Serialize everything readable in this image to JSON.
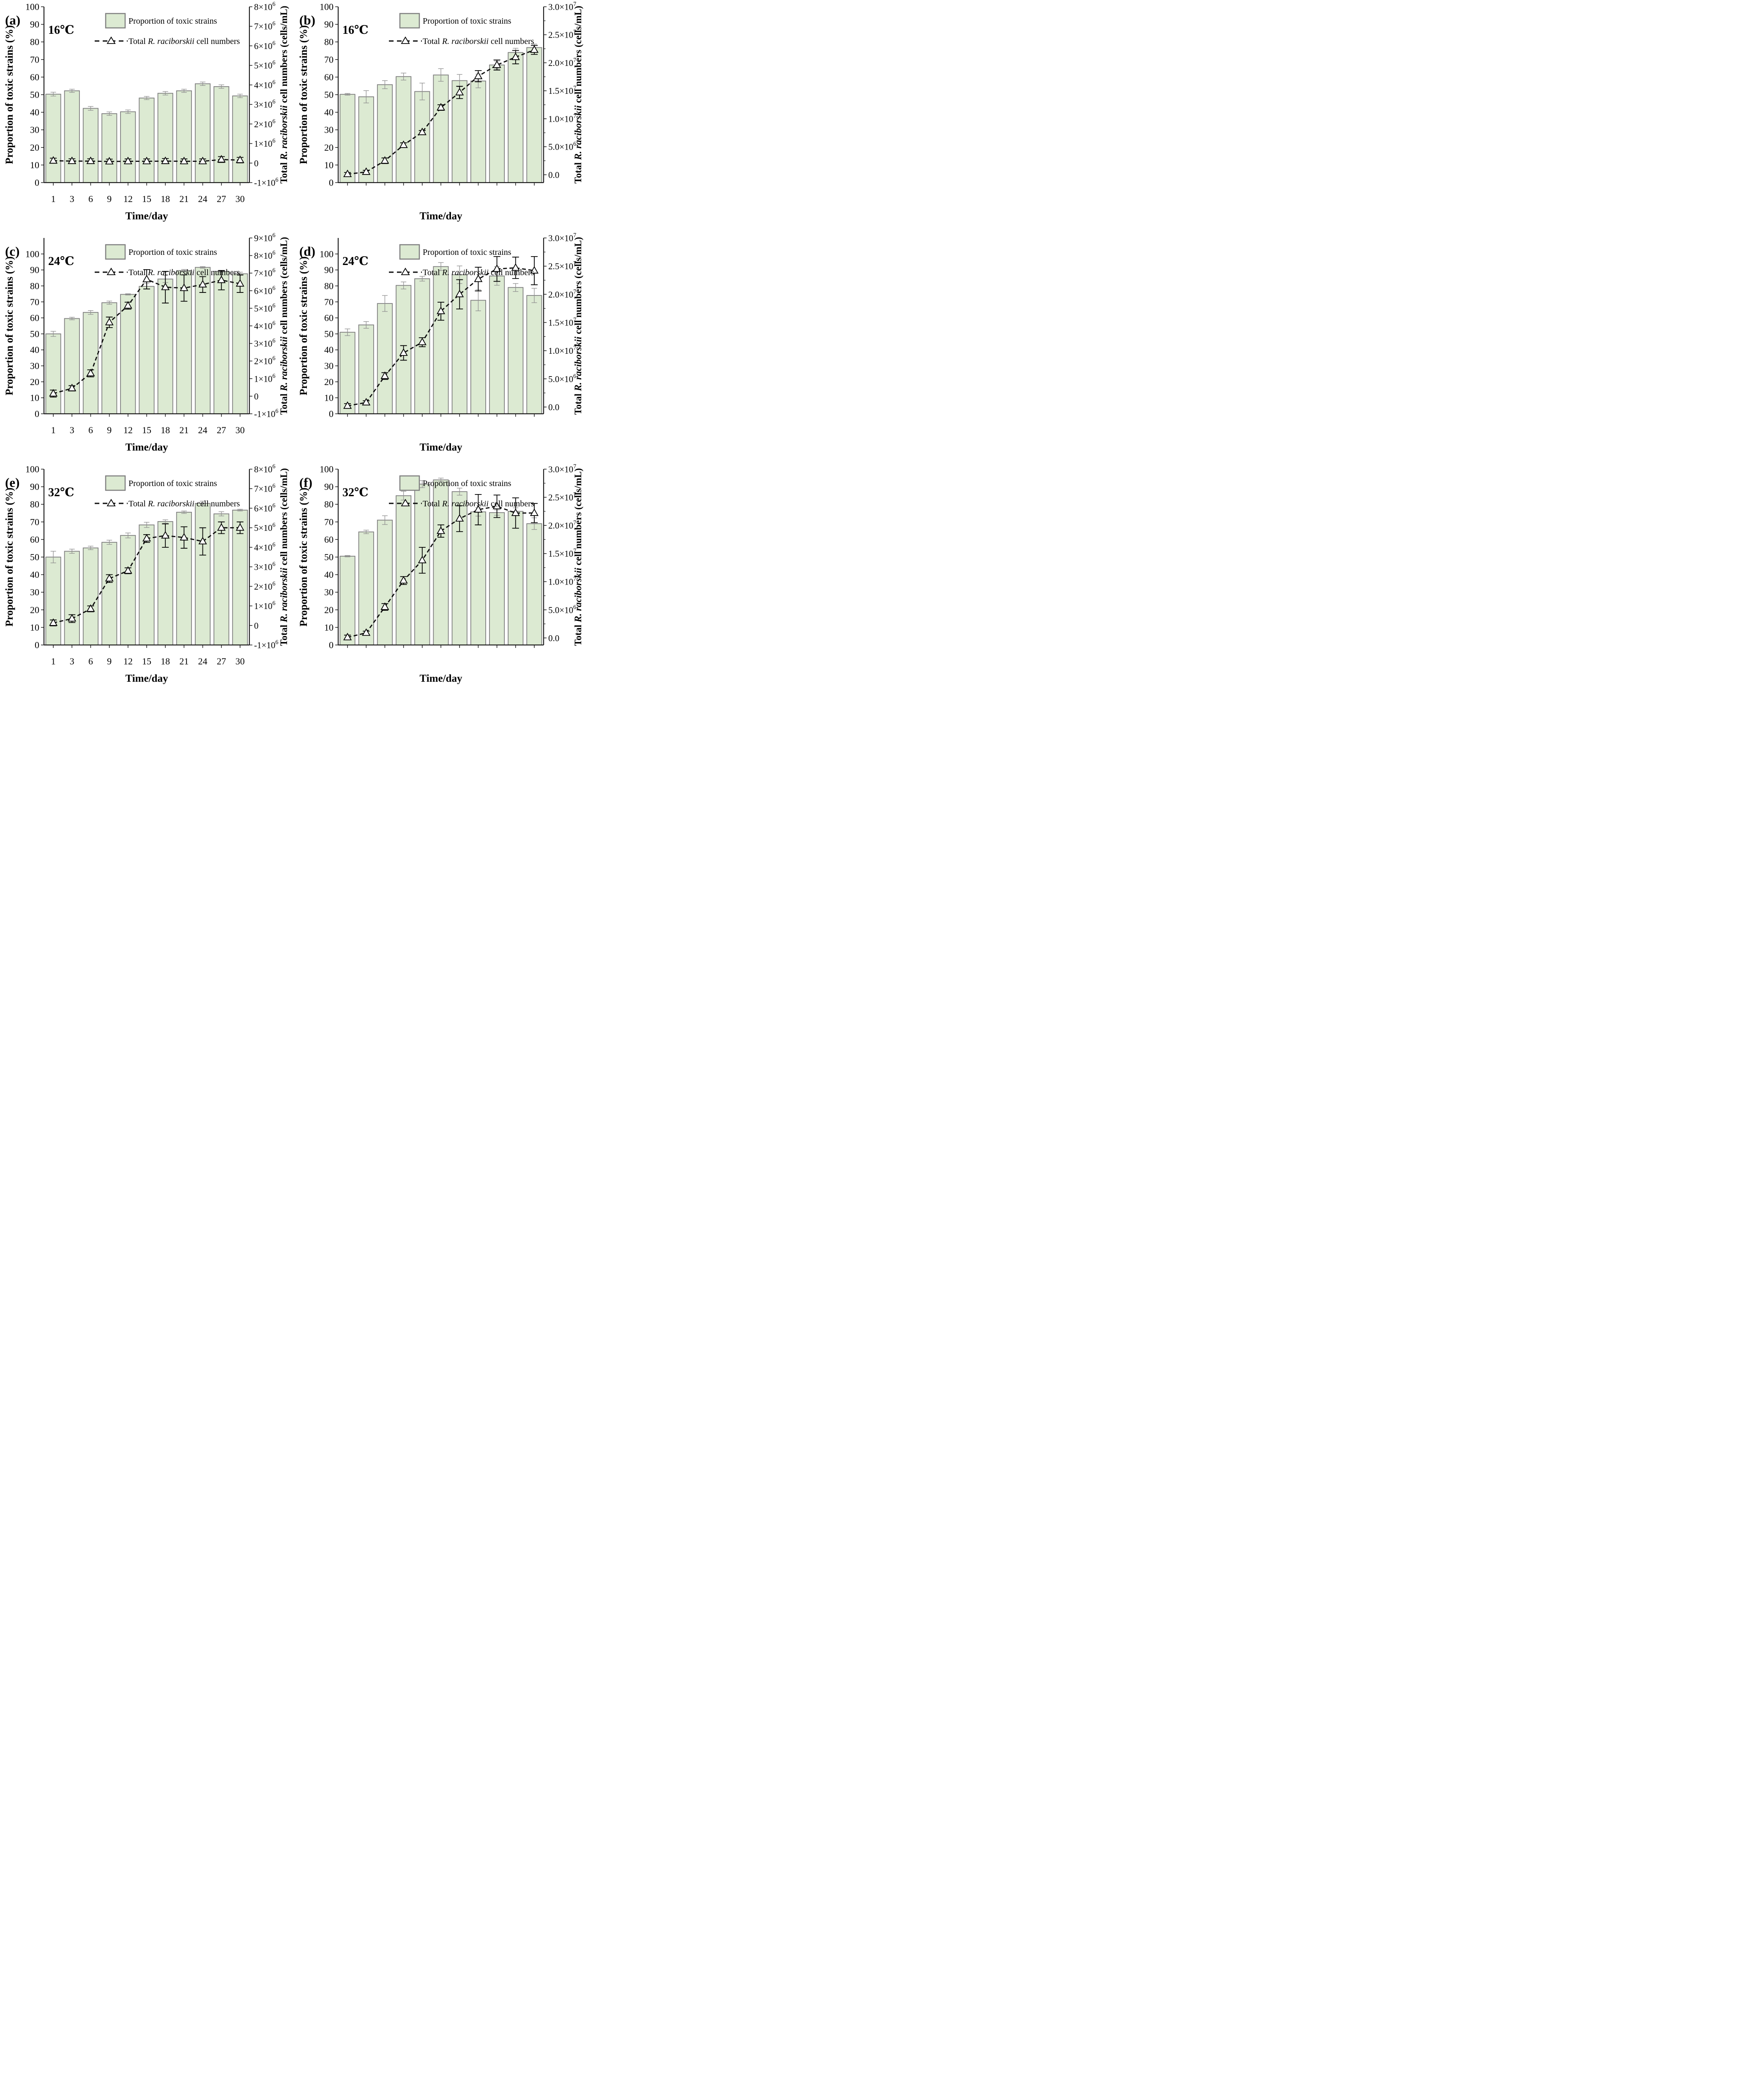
{
  "chart_data": {
    "common": {
      "type": "bar+line",
      "x_axis_label": "Time/day",
      "left_axis_label": "Proportion of toxic strains (%)",
      "right_axis_label_parts": [
        {
          "t": "Total ",
          "i": false
        },
        {
          "t": "R. raciborskii",
          "i": true
        },
        {
          "t": " cell numbers (cells/mL)",
          "i": false
        }
      ],
      "legend": {
        "bar_label": "Proportion of toxic strains",
        "line_label_parts": [
          {
            "t": "Total ",
            "i": false
          },
          {
            "t": "R. raciborskii",
            "i": true
          },
          {
            "t": " cell numbers",
            "i": false
          }
        ]
      },
      "categories": [
        1,
        3,
        6,
        9,
        12,
        15,
        18,
        21,
        24,
        27,
        30
      ],
      "colors": {
        "bar_fill": "#dcead2",
        "bar_edge": "#7f7f7f",
        "bar_error": "#8f8f8f",
        "line": "#0d0d0d",
        "marker_fill": "#ffffff",
        "marker_edge": "#000000",
        "spine": "#1a1a1a",
        "text": "#000000"
      },
      "grid": false,
      "legend_position": "top-center-inside"
    },
    "panels": [
      {
        "id": "a",
        "panel_label": "(a)",
        "temperature_label": "16℃",
        "show_x_tick_labels": true,
        "left_ylim": [
          0,
          100
        ],
        "left_ticks": [
          0,
          10,
          20,
          30,
          40,
          50,
          60,
          70,
          80,
          90,
          100
        ],
        "right_ylim": [
          -1000000,
          8000000
        ],
        "right_minor": false,
        "right_ticks": [
          {
            "v": 8000000,
            "l": "8×10^6"
          },
          {
            "v": 7000000,
            "l": "7×10^6"
          },
          {
            "v": 6000000,
            "l": "6×10^6"
          },
          {
            "v": 5000000,
            "l": "5×10^6"
          },
          {
            "v": 4000000,
            "l": "4×10^6"
          },
          {
            "v": 3000000,
            "l": "3×10^6"
          },
          {
            "v": 2000000,
            "l": "2×10^6"
          },
          {
            "v": 1000000,
            "l": "1×10^6"
          },
          {
            "v": 0,
            "l": "0"
          },
          {
            "v": -1000000,
            "l": "-1×10^6"
          }
        ],
        "bar_values": [
          50.3,
          52.2,
          42.2,
          39.2,
          40.3,
          48.1,
          50.8,
          52.2,
          56.2,
          54.6,
          49.3
        ],
        "bar_errors": [
          1.1,
          0.9,
          1.1,
          1.0,
          1.0,
          0.9,
          1.0,
          0.9,
          1.0,
          1.0,
          1.0
        ],
        "line_values": [
          120000,
          100000,
          100000,
          80000,
          90000,
          90000,
          100000,
          90000,
          90000,
          180000,
          150000
        ],
        "line_errors": [
          130000,
          120000,
          120000,
          120000,
          120000,
          120000,
          130000,
          120000,
          120000,
          150000,
          140000
        ]
      },
      {
        "id": "b",
        "panel_label": "(b)",
        "temperature_label": "16℃",
        "show_x_tick_labels": false,
        "left_ylim": [
          0,
          100
        ],
        "left_ticks": [
          0,
          10,
          20,
          30,
          40,
          50,
          60,
          70,
          80,
          90,
          100
        ],
        "right_ylim": [
          -1400000,
          30000000
        ],
        "right_minor": true,
        "right_ticks": [
          {
            "v": 30000000,
            "l": "3.0×10^7"
          },
          {
            "v": 25000000,
            "l": "2.5×10^7"
          },
          {
            "v": 20000000,
            "l": "2.0×10^7"
          },
          {
            "v": 15000000,
            "l": "1.5×10^7"
          },
          {
            "v": 10000000,
            "l": "1.0×10^7"
          },
          {
            "v": 5000000,
            "l": "5.0×10^6"
          },
          {
            "v": 0,
            "l": "0.0"
          }
        ],
        "bar_values": [
          50.2,
          48.8,
          55.7,
          60.3,
          51.8,
          61.2,
          58.0,
          57.8,
          66.9,
          74.0,
          76.8
        ],
        "bar_errors": [
          0.5,
          3.5,
          2.3,
          2.0,
          4.8,
          3.6,
          3.5,
          3.9,
          2.2,
          2.4,
          2.0
        ],
        "line_values": [
          100000,
          500000,
          2500000,
          5300000,
          7600000,
          12000000,
          14700000,
          17600000,
          19600000,
          21000000,
          22300000
        ],
        "line_errors": [
          300000,
          300000,
          500000,
          400000,
          300000,
          500000,
          1100000,
          1000000,
          900000,
          1200000,
          800000
        ]
      },
      {
        "id": "c",
        "panel_label": "(c)",
        "temperature_label": "24℃",
        "show_x_tick_labels": true,
        "left_ylim": [
          0,
          110
        ],
        "left_ticks": [
          0,
          10,
          20,
          30,
          40,
          50,
          60,
          70,
          80,
          90,
          100
        ],
        "right_ylim": [
          -1000000,
          9000000
        ],
        "right_minor": false,
        "right_ticks": [
          {
            "v": 9000000,
            "l": "9×10^6"
          },
          {
            "v": 8000000,
            "l": "8×10^6"
          },
          {
            "v": 7000000,
            "l": "7×10^6"
          },
          {
            "v": 6000000,
            "l": "6×10^6"
          },
          {
            "v": 5000000,
            "l": "5×10^6"
          },
          {
            "v": 4000000,
            "l": "4×10^6"
          },
          {
            "v": 3000000,
            "l": "3×10^6"
          },
          {
            "v": 2000000,
            "l": "2×10^6"
          },
          {
            "v": 1000000,
            "l": "1×10^6"
          },
          {
            "v": 0,
            "l": "0"
          },
          {
            "v": -1000000,
            "l": "-1×10^6"
          }
        ],
        "bar_values": [
          50.0,
          59.6,
          63.4,
          69.5,
          74.7,
          79.7,
          84.3,
          89.6,
          91.6,
          89.1,
          87.6
        ],
        "bar_errors": [
          1.6,
          0.8,
          1.2,
          1.0,
          0.4,
          1.7,
          2.2,
          0.7,
          0.5,
          0.4,
          1.0
        ],
        "line_values": [
          150000,
          450000,
          1300000,
          4200000,
          5150000,
          6650000,
          6200000,
          6150000,
          6350000,
          6600000,
          6400000
        ],
        "line_errors": [
          200000,
          150000,
          200000,
          300000,
          200000,
          550000,
          900000,
          750000,
          450000,
          550000,
          500000
        ]
      },
      {
        "id": "d",
        "panel_label": "(d)",
        "temperature_label": "24℃",
        "show_x_tick_labels": false,
        "left_ylim": [
          0,
          110
        ],
        "left_ticks": [
          0,
          10,
          20,
          30,
          40,
          50,
          60,
          70,
          80,
          90,
          100
        ],
        "right_ylim": [
          -1200000,
          30000000
        ],
        "right_minor": true,
        "right_ticks": [
          {
            "v": 30000000,
            "l": "3.0×10^7"
          },
          {
            "v": 25000000,
            "l": "2.5×10^7"
          },
          {
            "v": 20000000,
            "l": "2.0×10^7"
          },
          {
            "v": 15000000,
            "l": "1.5×10^7"
          },
          {
            "v": 10000000,
            "l": "1.0×10^7"
          },
          {
            "v": 5000000,
            "l": "5.0×10^6"
          },
          {
            "v": 0,
            "l": "0.0"
          }
        ],
        "bar_values": [
          51.0,
          55.6,
          69.0,
          80.3,
          84.5,
          92.1,
          87.0,
          71.0,
          86.2,
          79.0,
          74.0
        ],
        "bar_errors": [
          2.1,
          2.1,
          5.0,
          2.2,
          1.5,
          2.5,
          5.5,
          6.6,
          5.8,
          2.5,
          4.5
        ],
        "line_values": [
          200000,
          800000,
          5500000,
          9600000,
          11500000,
          17000000,
          20000000,
          22700000,
          24500000,
          24700000,
          24200000
        ],
        "line_errors": [
          400000,
          300000,
          600000,
          1300000,
          800000,
          1600000,
          2600000,
          2100000,
          2200000,
          1900000,
          2500000
        ]
      },
      {
        "id": "e",
        "panel_label": "(e)",
        "temperature_label": "32℃",
        "show_x_tick_labels": true,
        "left_ylim": [
          0,
          100
        ],
        "left_ticks": [
          0,
          10,
          20,
          30,
          40,
          50,
          60,
          70,
          80,
          90,
          100
        ],
        "right_ylim": [
          -1000000,
          8000000
        ],
        "right_minor": false,
        "right_ticks": [
          {
            "v": 8000000,
            "l": "8×10^6"
          },
          {
            "v": 7000000,
            "l": "7×10^6"
          },
          {
            "v": 6000000,
            "l": "6×10^6"
          },
          {
            "v": 5000000,
            "l": "5×10^6"
          },
          {
            "v": 4000000,
            "l": "4×10^6"
          },
          {
            "v": 3000000,
            "l": "3×10^6"
          },
          {
            "v": 2000000,
            "l": "2×10^6"
          },
          {
            "v": 1000000,
            "l": "1×10^6"
          },
          {
            "v": 0,
            "l": "0"
          },
          {
            "v": -1000000,
            "l": "-1×10^6"
          }
        ],
        "bar_values": [
          50.0,
          53.3,
          55.2,
          58.4,
          62.3,
          68.3,
          70.2,
          75.5,
          80.5,
          74.6,
          76.7
        ],
        "bar_errors": [
          3.3,
          1.2,
          1.0,
          1.2,
          1.4,
          1.5,
          1.0,
          0.7,
          1.3,
          1.2,
          0.5
        ],
        "line_values": [
          130000,
          350000,
          850000,
          2400000,
          2800000,
          4450000,
          4600000,
          4500000,
          4300000,
          5000000,
          5000000
        ],
        "line_errors": [
          150000,
          200000,
          150000,
          200000,
          150000,
          200000,
          600000,
          550000,
          700000,
          300000,
          300000
        ]
      },
      {
        "id": "f",
        "panel_label": "(f)",
        "temperature_label": "32℃",
        "show_x_tick_labels": false,
        "left_ylim": [
          0,
          100
        ],
        "left_ticks": [
          0,
          10,
          20,
          30,
          40,
          50,
          60,
          70,
          80,
          90,
          100
        ],
        "right_ylim": [
          -1250000,
          30000000
        ],
        "right_minor": true,
        "right_ticks": [
          {
            "v": 30000000,
            "l": "3.0×10^7"
          },
          {
            "v": 25000000,
            "l": "2.5×10^7"
          },
          {
            "v": 20000000,
            "l": "2.0×10^7"
          },
          {
            "v": 15000000,
            "l": "1.5×10^7"
          },
          {
            "v": 10000000,
            "l": "1.0×10^7"
          },
          {
            "v": 5000000,
            "l": "5.0×10^6"
          },
          {
            "v": 0,
            "l": "0.0"
          }
        ],
        "bar_values": [
          50.5,
          64.3,
          71.0,
          84.9,
          91.5,
          93.9,
          87.2,
          75.7,
          75.3,
          76.0,
          69.0
        ],
        "bar_errors": [
          0.4,
          1.0,
          2.5,
          2.5,
          2.0,
          1.0,
          2.0,
          2.4,
          1.5,
          2.0,
          3.3
        ],
        "line_values": [
          100000,
          900000,
          5500000,
          10200000,
          13800000,
          19000000,
          21200000,
          22800000,
          23400000,
          22200000,
          22200000
        ],
        "line_errors": [
          400000,
          300000,
          600000,
          700000,
          2300000,
          1100000,
          2300000,
          2700000,
          2000000,
          2700000,
          1700000
        ]
      }
    ]
  }
}
